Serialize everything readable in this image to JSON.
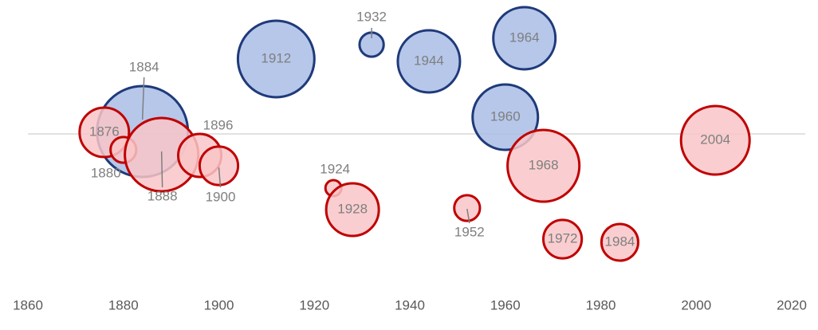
{
  "chart_data": {
    "type": "bubble",
    "xlim": [
      1860,
      2020
    ],
    "xticks": [
      1860,
      1880,
      1900,
      1920,
      1940,
      1960,
      1980,
      2000,
      2020
    ],
    "ylim": [
      -20,
      17
    ],
    "series": [
      {
        "color": "#1f3a7a",
        "fill": "#a9bde6",
        "x": [
          1884,
          1912,
          1932,
          1944,
          1960,
          1964
        ],
        "y": [
          0.3,
          9.4,
          11.2,
          9.1,
          2.1,
          12.0
        ],
        "sizes": [
          32.5,
          23.0,
          2.3,
          15.2,
          16.8,
          15.2
        ]
      },
      {
        "color": "#c00000",
        "fill": "#f9c5c8",
        "x": [
          1876,
          1880,
          1888,
          1896,
          1900,
          1924,
          1928,
          1952,
          1968,
          1972,
          1984,
          2004
        ],
        "y": [
          0.2,
          -2.0,
          -2.6,
          -2.7,
          -4.0,
          -6.8,
          -9.5,
          -9.3,
          -4.0,
          -13.2,
          -13.6,
          -0.8
        ],
        "sizes": [
          9.6,
          2.6,
          21.2,
          7.3,
          5.8,
          1.0,
          10.9,
          2.6,
          20.3,
          5.8,
          5.3,
          18.5
        ]
      }
    ]
  }
}
